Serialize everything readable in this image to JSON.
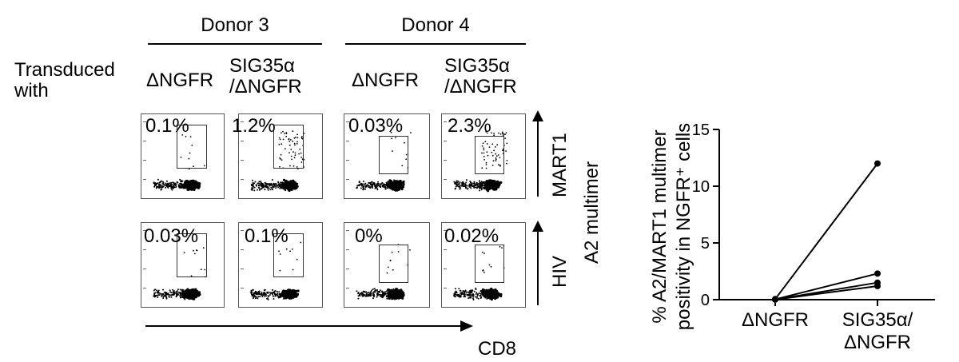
{
  "figure": {
    "row_label": [
      "Transduced",
      "with"
    ],
    "donors": [
      {
        "name": "Donor 3",
        "conditions": [
          "ΔNGFR",
          "SIG35α",
          "/ΔNGFR"
        ]
      },
      {
        "name": "Donor 4",
        "conditions": [
          "ΔNGFR",
          "SIG35α",
          "/ΔNGFR"
        ]
      }
    ],
    "panel_percentages": {
      "mart1": [
        "0.1%",
        "1.2%",
        "0.03%",
        "2.3%"
      ],
      "hiv": [
        "0.03%",
        "0.1%",
        "0%",
        "0.02%"
      ]
    },
    "row_axis_labels": {
      "mart1": "MART1",
      "hiv": "HIV",
      "shared": "A2 multimer"
    },
    "x_axis_label": "CD8"
  },
  "chart_data": {
    "type": "line",
    "ylabel_lines": [
      "% A2/MART1 multimer",
      "positivity in NGFR⁺ cells"
    ],
    "ylim": [
      0,
      15
    ],
    "yticks": [
      0,
      5,
      10,
      15
    ],
    "categories": [
      "ΔNGFR",
      "SIG35α/ΔNGFR"
    ],
    "category_tick_lines": [
      [
        "ΔNGFR"
      ],
      [
        "SIG35α/",
        "ΔNGFR"
      ]
    ],
    "series": [
      {
        "values": [
          0.05,
          12.0
        ]
      },
      {
        "values": [
          0.03,
          2.3
        ]
      },
      {
        "values": [
          0.02,
          1.5
        ]
      },
      {
        "values": [
          0.01,
          1.2
        ]
      }
    ],
    "marker": "filled-circle",
    "color": "#000000"
  }
}
